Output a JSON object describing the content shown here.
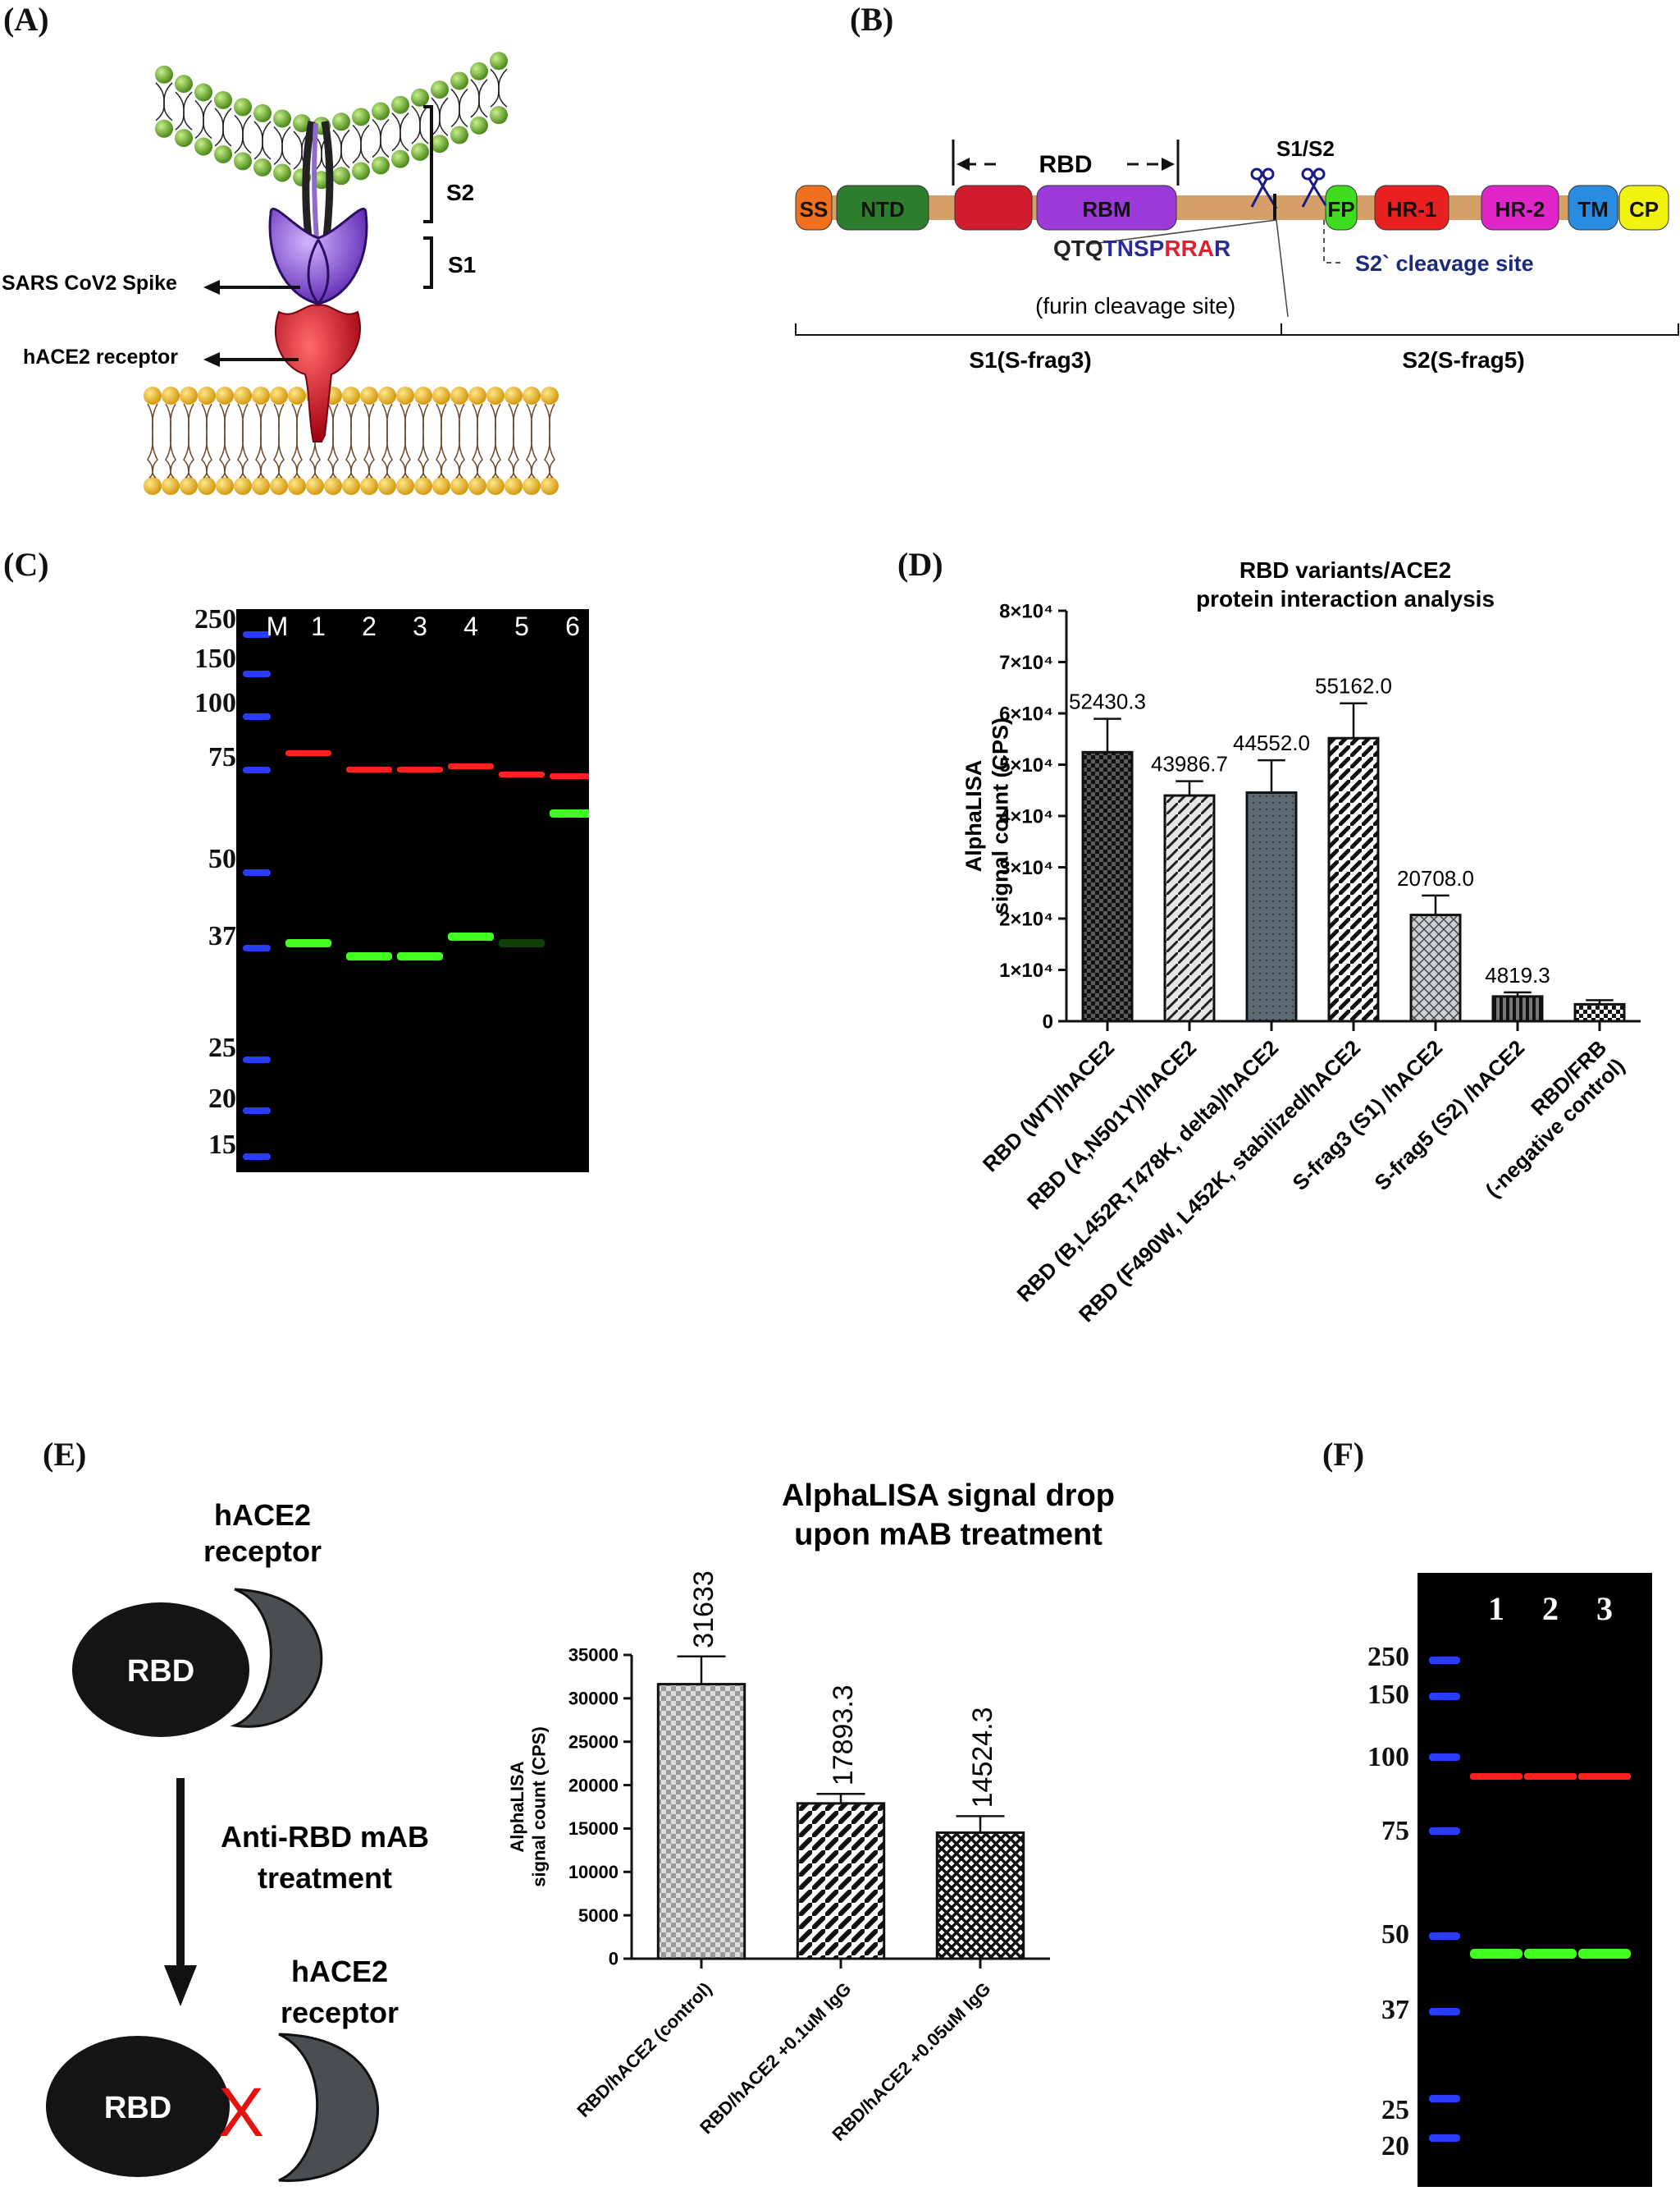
{
  "panels": {
    "A": {
      "label": "(A)",
      "s2": "S2",
      "s1": "S1",
      "spike": "SARS CoV2 Spike",
      "receptor": "hACE2 receptor"
    },
    "B": {
      "label": "(B)",
      "rbd": "RBD",
      "s1s2": "S1/S2",
      "domains": [
        {
          "name": "SS",
          "color": "#f07020"
        },
        {
          "name": "NTD",
          "color": "#2e7d2e"
        },
        {
          "name": "",
          "color": "#d01c2c"
        },
        {
          "name": "RBM",
          "color": "#9b3ad8"
        },
        {
          "name": "FP",
          "color": "#3fdc1f"
        },
        {
          "name": "HR-1",
          "color": "#e8201f"
        },
        {
          "name": "HR-2",
          "color": "#e026c8"
        },
        {
          "name": "TM",
          "color": "#2a8ce0"
        },
        {
          "name": "CP",
          "color": "#f2f20f"
        }
      ],
      "backbone_color": "#d4a068",
      "furin_seq": [
        {
          "t": "QTQ",
          "c": "#222222"
        },
        {
          "t": "TNSP",
          "c": "#2a2a9a"
        },
        {
          "t": "RRA",
          "c": "#e0202f"
        },
        {
          "t": "R",
          "c": "#2a2a9a"
        }
      ],
      "furin_label": "(furin cleavage site)",
      "s2prime": "S2` cleavage site",
      "s1frag": "S1(S-frag3)",
      "s2frag": "S2(S-frag5)"
    },
    "C": {
      "label": "(C)",
      "marker_lane": "M",
      "lanes": [
        "1",
        "2",
        "3",
        "4",
        "5",
        "6"
      ],
      "mw": [
        "250",
        "150",
        "100",
        "75",
        "50",
        "37",
        "25",
        "20",
        "15"
      ]
    },
    "D": {
      "label": "(D)"
    },
    "E": {
      "label": "(E)",
      "rec1": "hACE2\nreceptor",
      "rbd": "RBD",
      "treat": "Anti-RBD mAB\ntreatment",
      "rec2": "hACE2\nreceptor",
      "cross": "X"
    },
    "F": {
      "label": "(F)",
      "lanes": [
        "1",
        "2",
        "3"
      ],
      "mw": [
        "250",
        "150",
        "100",
        "75",
        "50",
        "37",
        "25",
        "20"
      ]
    }
  },
  "chart_data": [
    {
      "type": "bar",
      "title": "RBD variants/ACE2\nprotein interaction analysis",
      "ylabel": "AlphaLISA\nsignal count (CPS)",
      "ylim": [
        0,
        80000
      ],
      "yticks": [
        "0",
        "1×10⁴",
        "2×10⁴",
        "3×10⁴",
        "4×10⁴",
        "5×10⁴",
        "6×10⁴",
        "7×10⁴",
        "8×10⁴"
      ],
      "categories": [
        "RBD (WT)/hACE2",
        "RBD (A,N501Y)/hACE2",
        "RBD (B,L452R,T478K, delta)/hACE2",
        "RBD (F490W, L452K, stabilized/hACE2",
        "S-frag3 (S1) /hACE2",
        "S-frag5 (S2) /hACE2",
        "RBD/FRB\n(-negative control)"
      ],
      "values": [
        52430.3,
        43986.7,
        44552.0,
        55162.0,
        20708.0,
        4819.3,
        3300
      ],
      "errors": [
        6500,
        2800,
        6300,
        6800,
        3800,
        800,
        800
      ],
      "data_labels": [
        "52430.3",
        "43986.7",
        "44552.0",
        "55162.0",
        "20708.0",
        "4819.3",
        ""
      ],
      "patterns": [
        "checker-dark",
        "diag-light",
        "dots-slate",
        "diag-dark",
        "herring-light",
        "vlines-dark",
        "checker-small"
      ],
      "grid": false
    },
    {
      "type": "bar",
      "title": "AlphaLISA signal drop\nupon mAB treatment",
      "ylabel": "AlphaLISA\nsignal count (CPS)",
      "ylim": [
        0,
        35000
      ],
      "yticks": [
        "0",
        "5000",
        "10000",
        "15000",
        "20000",
        "25000",
        "30000",
        "35000"
      ],
      "categories": [
        "RBD/hACE2 (control)",
        "RBD/hACE2 +0.1uM IgG",
        "RBD/hACE2 +0.05uM IgG"
      ],
      "values": [
        31633,
        17893.3,
        14524.3
      ],
      "errors": [
        3200,
        1100,
        1900
      ],
      "data_labels": [
        "31633",
        "17893.3",
        "14524.3"
      ],
      "patterns": [
        "checker-grey",
        "diag-black",
        "cross-black"
      ],
      "grid": false
    }
  ]
}
